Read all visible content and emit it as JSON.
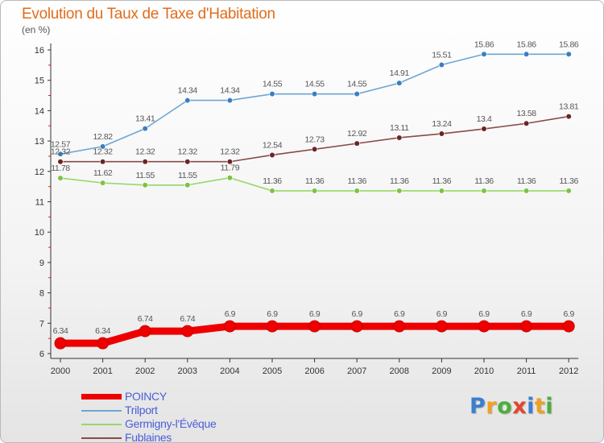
{
  "title": "Evolution du Taux de Taxe d'Habitation",
  "unit": "(en %)",
  "brand": {
    "letters": [
      {
        "ch": "P",
        "color": "#3a7fd0"
      },
      {
        "ch": "r",
        "color": "#f0a020"
      },
      {
        "ch": "o",
        "color": "#4cae3c"
      },
      {
        "ch": "x",
        "color": "#e2462e"
      },
      {
        "ch": "i",
        "color": "#3a7fd0"
      },
      {
        "ch": "t",
        "color": "#f0a020"
      },
      {
        "ch": "i",
        "color": "#4cae3c"
      }
    ]
  },
  "chart_data": {
    "type": "line",
    "x": [
      "2000",
      "2001",
      "2002",
      "2003",
      "2004",
      "2005",
      "2006",
      "2007",
      "2008",
      "2009",
      "2010",
      "2011",
      "2012"
    ],
    "ylim": [
      6,
      16
    ],
    "yticks": [
      6,
      7,
      8,
      9,
      10,
      11,
      12,
      13,
      14,
      15,
      16
    ],
    "grid": false,
    "legend_position": "bottom-left",
    "series": [
      {
        "name": "POINCY",
        "color": "#ee0000",
        "values": [
          6.34,
          6.34,
          6.74,
          6.74,
          6.9,
          6.9,
          6.9,
          6.9,
          6.9,
          6.9,
          6.9,
          6.9,
          6.9
        ],
        "labels": [
          "6.34",
          "6.34",
          "6.74",
          "6.74",
          "6.9",
          "6.9",
          "6.9",
          "6.9",
          "6.9",
          "6.9",
          "6.9",
          "6.9",
          "6.9"
        ]
      },
      {
        "name": "Trilport",
        "color": "#6ea6d4",
        "marker": "#3a7fc0",
        "values": [
          12.57,
          12.82,
          13.41,
          14.34,
          14.34,
          14.55,
          14.55,
          14.55,
          14.91,
          15.51,
          15.86,
          15.86,
          15.86
        ],
        "labels": [
          "12.57",
          "12.82",
          "13.41",
          "14.34",
          "14.34",
          "14.55",
          "14.55",
          "14.55",
          "14.91",
          "15.51",
          "15.86",
          "15.86",
          "15.86"
        ]
      },
      {
        "name": "Germigny-l'Évêque",
        "color": "#98d66a",
        "marker": "#7cc246",
        "values": [
          11.78,
          11.62,
          11.55,
          11.55,
          11.79,
          11.36,
          11.36,
          11.36,
          11.36,
          11.36,
          11.36,
          11.36,
          11.36
        ],
        "labels": [
          "11.78",
          "11.62",
          "11.55",
          "11.55",
          "11.79",
          "11.36",
          "11.36",
          "11.36",
          "11.36",
          "11.36",
          "11.36",
          "11.36",
          "11.36"
        ]
      },
      {
        "name": "Fublaines",
        "color": "#8a4a4a",
        "marker": "#6e2424",
        "values": [
          12.32,
          12.32,
          12.32,
          12.32,
          12.32,
          12.54,
          12.73,
          12.92,
          13.11,
          13.24,
          13.4,
          13.58,
          13.81
        ],
        "labels": [
          "12.32",
          "12.32",
          "12.32",
          "12.32",
          "12.32",
          "12.54",
          "12.73",
          "12.92",
          "13.11",
          "13.24",
          "13.4",
          "13.58",
          "13.81"
        ]
      }
    ]
  }
}
